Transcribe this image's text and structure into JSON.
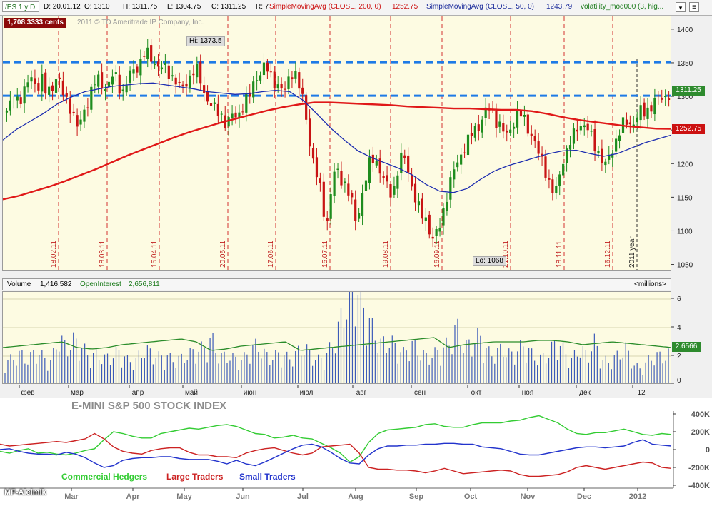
{
  "header": {
    "symbol": "/ES 1 y D",
    "date": "D: 20.01.12",
    "open": "O: 1310",
    "high": "H: 1311.75",
    "low": "L: 1304.75",
    "close": "C: 1311.25",
    "range": "R: 7",
    "sma200_label": "SimpleMovingAvg (CLOSE, 200, 0)",
    "sma200_value": "1252.75",
    "sma50_label": "SimpleMovingAvg (CLOSE, 50, 0)",
    "sma50_value": "1243.79",
    "vol_mod_label": "volatility_mod000 (3, hig..."
  },
  "price_panel": {
    "cents_badge": "1,708.3333 cents",
    "copyright": "2011 © TD Ameritrade IP Company, Inc.",
    "hi_label": "Hi: 1373.5",
    "lo_label": "Lo: 1068",
    "year_label": "2011 year",
    "last_price": "1311.25",
    "sma200_badge": "1252.75",
    "y_ticks": [
      "1400",
      "1350",
      "1300",
      "1250",
      "1200",
      "1150",
      "1100",
      "1050"
    ],
    "vertical_date_labels": [
      "18.02.11",
      "18.03.11",
      "15.04.11",
      "20.05.11",
      "17.06.11",
      "15.07.11",
      "19.08.11",
      "16.09.11",
      "21.10.11",
      "18.11.11",
      "16.12.11"
    ],
    "resistance_levels": [
      1352,
      1302
    ]
  },
  "volume_panel": {
    "volume_label": "Volume",
    "volume_value": "1,416,582",
    "oi_label": "OpenInterest",
    "oi_value": "2,656,811",
    "units": "<millions>",
    "y_ticks": [
      "6",
      "4",
      "2",
      "0"
    ],
    "oi_badge": "2.6566"
  },
  "month_axis": [
    "фев",
    "мар",
    "апр",
    "май",
    "июн",
    "июл",
    "авг",
    "сен",
    "окт",
    "ноя",
    "дек",
    "12"
  ],
  "cot_panel": {
    "title": "E-MINI S&P 500 STOCK INDEX",
    "legend": [
      "Commercial Hedgers",
      "Large Traders",
      "Small Traders"
    ],
    "legend_colors": [
      "#33cc33",
      "#cc2222",
      "#2233cc"
    ],
    "y_ticks": [
      "400K",
      "200K",
      "0",
      "-200K",
      "-400K"
    ],
    "x_ticks": [
      "Mar",
      "Apr",
      "May",
      "Jun",
      "Jul",
      "Aug",
      "Sep",
      "Oct",
      "Nov",
      "Dec",
      "2012"
    ],
    "watermark": "MF-Aleimik"
  },
  "chart_data": [
    {
      "type": "candlestick",
      "title": "/ES 1 y D",
      "ylim": [
        1040,
        1420
      ],
      "x_range": [
        "2011-01-21",
        "2012-01-20"
      ],
      "annotations": {
        "high": 1373.5,
        "low": 1068,
        "last": 1311.25,
        "sma200_last": 1252.75,
        "sma50_last": 1243.79
      },
      "close_path": [
        1280,
        1288,
        1300,
        1296,
        1304,
        1314,
        1330,
        1322,
        1318,
        1326,
        1305,
        1310,
        1320,
        1335,
        1308,
        1296,
        1290,
        1274,
        1256,
        1262,
        1286,
        1298,
        1318,
        1325,
        1322,
        1314,
        1320,
        1330,
        1328,
        1312,
        1308,
        1330,
        1336,
        1342,
        1352,
        1366,
        1362,
        1356,
        1350,
        1346,
        1344,
        1336,
        1332,
        1328,
        1316,
        1312,
        1322,
        1334,
        1344,
        1334,
        1310,
        1300,
        1292,
        1282,
        1276,
        1271,
        1262,
        1268,
        1272,
        1270,
        1286,
        1296,
        1300,
        1320,
        1332,
        1340,
        1345,
        1336,
        1326,
        1320,
        1310,
        1308,
        1328,
        1340,
        1330,
        1306,
        1290,
        1246,
        1210,
        1186,
        1164,
        1130,
        1114,
        1170,
        1194,
        1182,
        1176,
        1162,
        1146,
        1116,
        1134,
        1160,
        1186,
        1206,
        1212,
        1196,
        1180,
        1168,
        1158,
        1166,
        1196,
        1212,
        1206,
        1178,
        1156,
        1136,
        1124,
        1120,
        1102,
        1086,
        1099,
        1116,
        1146,
        1166,
        1188,
        1200,
        1216,
        1226,
        1236,
        1248,
        1254,
        1262,
        1276,
        1282,
        1278,
        1266,
        1258,
        1246,
        1242,
        1258,
        1272,
        1276,
        1268,
        1254,
        1246,
        1230,
        1212,
        1200,
        1186,
        1164,
        1154,
        1176,
        1208,
        1220,
        1234,
        1244,
        1258,
        1262,
        1256,
        1244,
        1230,
        1220,
        1208,
        1196,
        1212,
        1226,
        1244,
        1256,
        1262,
        1260,
        1262,
        1272,
        1278,
        1276,
        1284,
        1290,
        1296,
        1298,
        1300,
        1305,
        1311.25
      ],
      "sma200_path": [
        1148,
        1153,
        1160,
        1167,
        1175,
        1184,
        1193,
        1203,
        1213,
        1222,
        1231,
        1240,
        1248,
        1255,
        1262,
        1268,
        1274,
        1280,
        1285,
        1289,
        1292,
        1292,
        1291,
        1290,
        1289,
        1288,
        1286,
        1285,
        1284,
        1283,
        1283,
        1282,
        1281,
        1281,
        1279,
        1275,
        1270,
        1266,
        1263,
        1260,
        1257,
        1255,
        1253,
        1252.75
      ],
      "sma50_path": [
        1236,
        1252,
        1264,
        1276,
        1290,
        1300,
        1308,
        1312,
        1316,
        1318,
        1320,
        1321,
        1318,
        1315,
        1312,
        1308,
        1306,
        1304,
        1305,
        1308,
        1310,
        1308,
        1295,
        1275,
        1254,
        1236,
        1220,
        1210,
        1202,
        1194,
        1184,
        1170,
        1160,
        1158,
        1164,
        1178,
        1190,
        1198,
        1204,
        1210,
        1216,
        1220,
        1221,
        1216,
        1212,
        1216,
        1224,
        1232,
        1238,
        1243.79
      ]
    },
    {
      "type": "bar",
      "title": "Volume",
      "units": "millions",
      "ylim": [
        0,
        6.5
      ],
      "last_volume": 1.416582,
      "open_interest_last": 2.6566,
      "volume_profile": [
        1.5,
        1.7,
        2.0,
        1.6,
        2.2,
        1.8,
        1.5,
        3.1,
        2.4,
        2.9,
        2.5,
        1.8,
        2.0,
        1.7,
        1.9,
        2.2,
        1.6,
        1.5,
        2.3,
        2.1,
        1.8,
        1.9,
        1.6,
        1.7,
        2.0,
        2.2,
        2.4,
        3.0,
        1.8,
        1.9,
        1.7,
        1.6,
        2.3,
        2.6,
        1.9,
        1.8,
        2.1,
        1.7,
        2.0,
        2.5,
        1.9,
        1.6,
        2.0,
        2.8,
        4.5,
        5.6,
        6.3,
        4.8,
        3.6,
        2.6,
        2.9,
        2.5,
        2.0,
        2.7,
        2.2,
        1.8,
        2.0,
        2.3,
        2.7,
        3.8,
        2.4,
        2.8,
        3.2,
        2.1,
        2.0,
        2.4,
        1.9,
        2.3,
        2.6,
        1.8,
        1.7,
        2.0,
        2.9,
        2.2,
        1.6,
        2.4,
        1.9,
        2.8,
        1.6,
        1.5,
        1.9,
        2.4,
        1.4,
        1.0,
        1.6,
        1.9,
        1.8,
        2.1
      ],
      "open_interest_profile": [
        2.6,
        2.7,
        2.8,
        2.9,
        3.0,
        2.6,
        2.5,
        2.6,
        2.8,
        2.9,
        3.0,
        3.1,
        3.2,
        3.0,
        2.4,
        2.5,
        2.7,
        2.8,
        2.9,
        3.0,
        2.4,
        2.5,
        2.6,
        2.7,
        2.8,
        2.9,
        3.0,
        3.1,
        3.2,
        3.3,
        2.6,
        2.8,
        2.9,
        3.0,
        3.0,
        3.0,
        3.1,
        3.1,
        3.0,
        2.8,
        2.9,
        3.0,
        2.9,
        2.8,
        2.7,
        2.6
      ]
    },
    {
      "type": "line",
      "title": "E-MINI S&P 500 STOCK INDEX",
      "ylim": [
        -400000,
        400000
      ],
      "x_ticks": [
        "Mar",
        "Apr",
        "May",
        "Jun",
        "Jul",
        "Aug",
        "Sep",
        "Oct",
        "Nov",
        "Dec",
        "2012"
      ],
      "series": [
        {
          "name": "Commercial Hedgers",
          "color": "#33cc33",
          "values": [
            -20000,
            -40000,
            -10000,
            10000,
            -40000,
            -30000,
            -50000,
            -60000,
            -40000,
            -10000,
            10000,
            110000,
            200000,
            180000,
            150000,
            130000,
            130000,
            180000,
            200000,
            220000,
            240000,
            230000,
            250000,
            270000,
            280000,
            260000,
            220000,
            180000,
            170000,
            130000,
            140000,
            160000,
            130000,
            120000,
            70000,
            20000,
            -40000,
            -140000,
            -80000,
            80000,
            180000,
            220000,
            230000,
            240000,
            250000,
            280000,
            290000,
            260000,
            250000,
            250000,
            280000,
            300000,
            300000,
            300000,
            320000,
            330000,
            360000,
            380000,
            340000,
            300000,
            230000,
            180000,
            170000,
            190000,
            190000,
            210000,
            230000,
            200000,
            170000,
            160000,
            180000,
            170000
          ]
        },
        {
          "name": "Large Traders",
          "color": "#cc2222",
          "values": [
            60000,
            40000,
            50000,
            60000,
            70000,
            80000,
            90000,
            80000,
            100000,
            120000,
            180000,
            120000,
            30000,
            -20000,
            -40000,
            -50000,
            -10000,
            10000,
            20000,
            20000,
            -30000,
            -60000,
            -60000,
            -80000,
            -80000,
            -90000,
            -40000,
            -10000,
            10000,
            20000,
            -10000,
            -40000,
            -60000,
            -40000,
            30000,
            40000,
            50000,
            60000,
            -40000,
            -200000,
            -220000,
            -220000,
            -230000,
            -230000,
            -240000,
            -260000,
            -240000,
            -210000,
            -240000,
            -270000,
            -260000,
            -250000,
            -240000,
            -230000,
            -240000,
            -280000,
            -300000,
            -300000,
            -290000,
            -280000,
            -250000,
            -200000,
            -180000,
            -200000,
            -220000,
            -200000,
            -180000,
            -160000,
            -140000,
            -150000,
            -200000,
            -210000
          ]
        },
        {
          "name": "Small Traders",
          "color": "#2233cc",
          "values": [
            0,
            10000,
            -20000,
            -40000,
            -50000,
            -50000,
            -60000,
            -30000,
            -50000,
            -90000,
            -150000,
            -200000,
            -180000,
            -120000,
            -100000,
            -90000,
            -90000,
            -80000,
            -80000,
            -100000,
            -110000,
            -110000,
            -110000,
            -130000,
            -160000,
            -120000,
            -160000,
            -180000,
            -140000,
            -90000,
            -40000,
            10000,
            50000,
            60000,
            30000,
            -30000,
            -100000,
            -150000,
            -160000,
            -60000,
            10000,
            40000,
            40000,
            50000,
            50000,
            60000,
            60000,
            70000,
            70000,
            60000,
            60000,
            30000,
            20000,
            10000,
            -20000,
            -50000,
            -60000,
            -60000,
            -40000,
            -20000,
            0,
            20000,
            30000,
            30000,
            20000,
            30000,
            40000,
            80000,
            110000,
            60000,
            50000,
            40000
          ]
        }
      ]
    }
  ]
}
